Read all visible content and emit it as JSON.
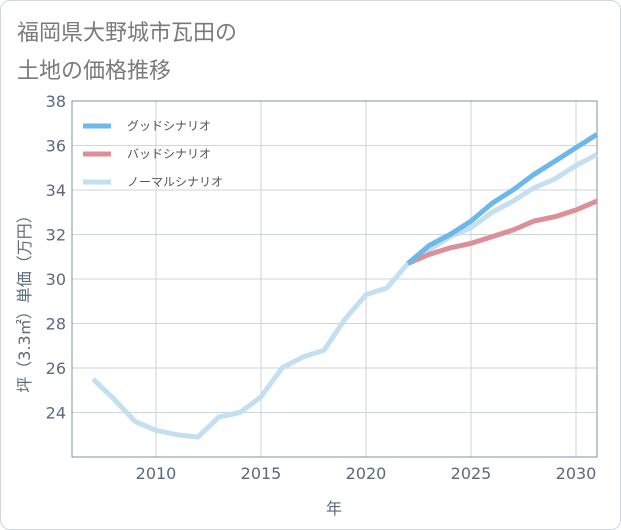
{
  "title": {
    "line1": "福岡県大野城市瓦田の",
    "line2": "土地の価格推移"
  },
  "chart_data": {
    "type": "line",
    "xlabel": "年",
    "ylabel": "坪（3.3㎡）単価（万円）",
    "xlim": [
      2006,
      2031
    ],
    "ylim": [
      22,
      38
    ],
    "xticks": [
      2010,
      2015,
      2020,
      2025,
      2030
    ],
    "yticks": [
      24,
      26,
      28,
      30,
      32,
      34,
      36,
      38
    ],
    "grid": true,
    "legend_position": "top-left",
    "series": [
      {
        "name": "グッドシナリオ",
        "color": "#6cb8ea",
        "x": [
          2022,
          2023,
          2024,
          2025,
          2026,
          2027,
          2028,
          2029,
          2030,
          2031
        ],
        "y": [
          30.7,
          31.5,
          32.0,
          32.6,
          33.4,
          34.0,
          34.7,
          35.3,
          35.9,
          36.5
        ]
      },
      {
        "name": "バッドシナリオ",
        "color": "#dc8f97",
        "x": [
          2022,
          2023,
          2024,
          2025,
          2026,
          2027,
          2028,
          2029,
          2030,
          2031
        ],
        "y": [
          30.7,
          31.1,
          31.4,
          31.6,
          31.9,
          32.2,
          32.6,
          32.8,
          33.1,
          33.5
        ]
      },
      {
        "name": "ノーマルシナリオ",
        "color": "#c3dff0",
        "x": [
          2007,
          2008,
          2009,
          2010,
          2011,
          2012,
          2013,
          2014,
          2015,
          2016,
          2017,
          2018,
          2019,
          2020,
          2021,
          2022,
          2023,
          2024,
          2025,
          2026,
          2027,
          2028,
          2029,
          2030,
          2031
        ],
        "y": [
          25.5,
          24.6,
          23.6,
          23.2,
          23.0,
          22.9,
          23.8,
          24.0,
          24.7,
          26.0,
          26.5,
          26.8,
          28.2,
          29.3,
          29.6,
          30.7,
          31.3,
          31.9,
          32.3,
          33.0,
          33.5,
          34.1,
          34.5,
          35.1,
          35.6
        ]
      }
    ]
  }
}
